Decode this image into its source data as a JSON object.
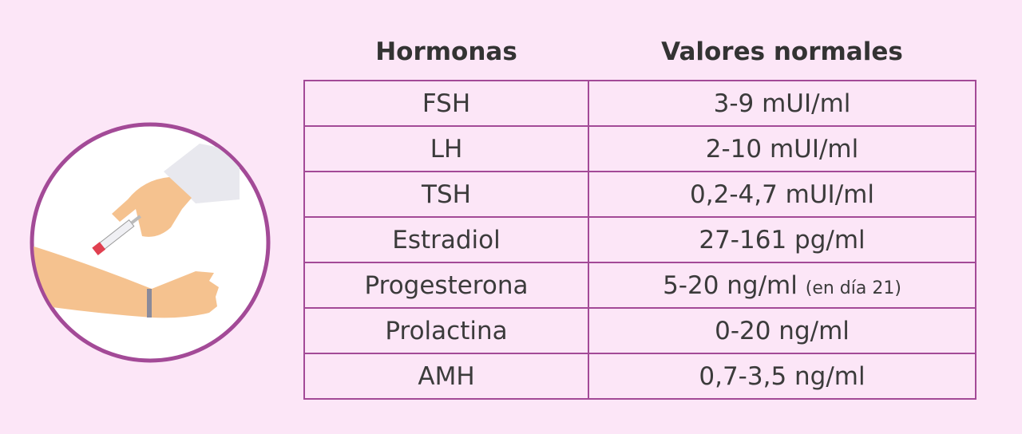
{
  "table": {
    "header": [
      "Hormonas",
      "Valores normales"
    ],
    "rows": [
      {
        "hormone": "FSH",
        "value": "3-9 mUI/ml"
      },
      {
        "hormone": "LH",
        "value": "2-10 mUI/ml"
      },
      {
        "hormone": "TSH",
        "value": "0,2-4,7 mUI/ml"
      },
      {
        "hormone": "Estradiol",
        "value": "27-161 pg/ml"
      },
      {
        "hormone": "Progesterona",
        "value": "5-20 ng/ml",
        "note": "(en día 21)"
      },
      {
        "hormone": "Prolactina",
        "value": "0-20 ng/ml"
      },
      {
        "hormone": "AMH",
        "value": "0,7-3,5 ng/ml"
      }
    ]
  }
}
